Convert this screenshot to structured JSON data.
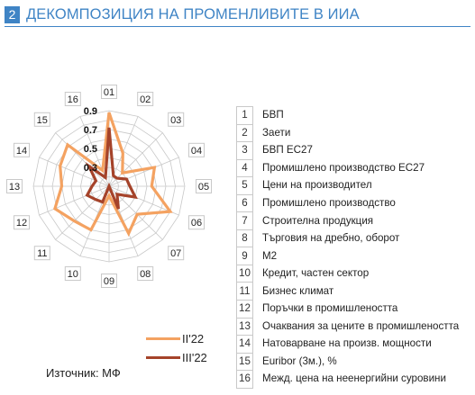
{
  "header": {
    "number": "2",
    "title": "ДЕКОМПОЗИЦИЯ НА ПРОМЕНЛИВИТЕ В ИИА"
  },
  "colors": {
    "accent": "#3f84c5",
    "series_ii22": "#f4a261",
    "series_iii22": "#a5432a",
    "grid": "#c8c8c8"
  },
  "chart_data": {
    "type": "radar",
    "categories": [
      "01",
      "02",
      "03",
      "04",
      "05",
      "06",
      "07",
      "08",
      "09",
      "10",
      "11",
      "12",
      "13",
      "14",
      "15",
      "16"
    ],
    "rlim": [
      0.1,
      0.9
    ],
    "ticks": [
      "0.9",
      "0.7",
      "0.5",
      "0.3"
    ],
    "grid": true,
    "series": [
      {
        "name": "II'22",
        "values": [
          0.88,
          0.48,
          0.3,
          0.62,
          0.55,
          0.8,
          0.52,
          0.64,
          0.2,
          0.6,
          0.62,
          0.72,
          0.6,
          0.66,
          0.72,
          0.28
        ]
      },
      {
        "name": "III'22",
        "values": [
          0.72,
          0.22,
          0.22,
          0.3,
          0.32,
          0.4,
          0.22,
          0.36,
          0.1,
          0.28,
          0.3,
          0.35,
          0.28,
          0.25,
          0.4,
          0.2
        ]
      }
    ]
  },
  "legend_items": [
    {
      "num": "1",
      "label": "БВП"
    },
    {
      "num": "2",
      "label": "Заети"
    },
    {
      "num": "3",
      "label": "БВП ЕС27"
    },
    {
      "num": "4",
      "label": "Промишлено производство ЕС27"
    },
    {
      "num": "5",
      "label": "Цени на производител"
    },
    {
      "num": "6",
      "label": "Промишлено производство"
    },
    {
      "num": "7",
      "label": "Строителна продукция"
    },
    {
      "num": "8",
      "label": "Търговия на дребно, оборот"
    },
    {
      "num": "9",
      "label": "М2"
    },
    {
      "num": "10",
      "label": "Кредит, частен сектор"
    },
    {
      "num": "11",
      "label": "Бизнес климат"
    },
    {
      "num": "12",
      "label": "Поръчки в промишлеността"
    },
    {
      "num": "13",
      "label": "Очаквания за цените в промишлеността"
    },
    {
      "num": "14",
      "label": "Натоварване на произв. мощности"
    },
    {
      "num": "15",
      "label": "Euribor (3м.), %"
    },
    {
      "num": "16",
      "label": "Межд. цена на неенергийни суровини"
    }
  ],
  "series_legend": [
    {
      "name": "II'22"
    },
    {
      "name": "III'22"
    }
  ],
  "source": "Източник: МФ"
}
